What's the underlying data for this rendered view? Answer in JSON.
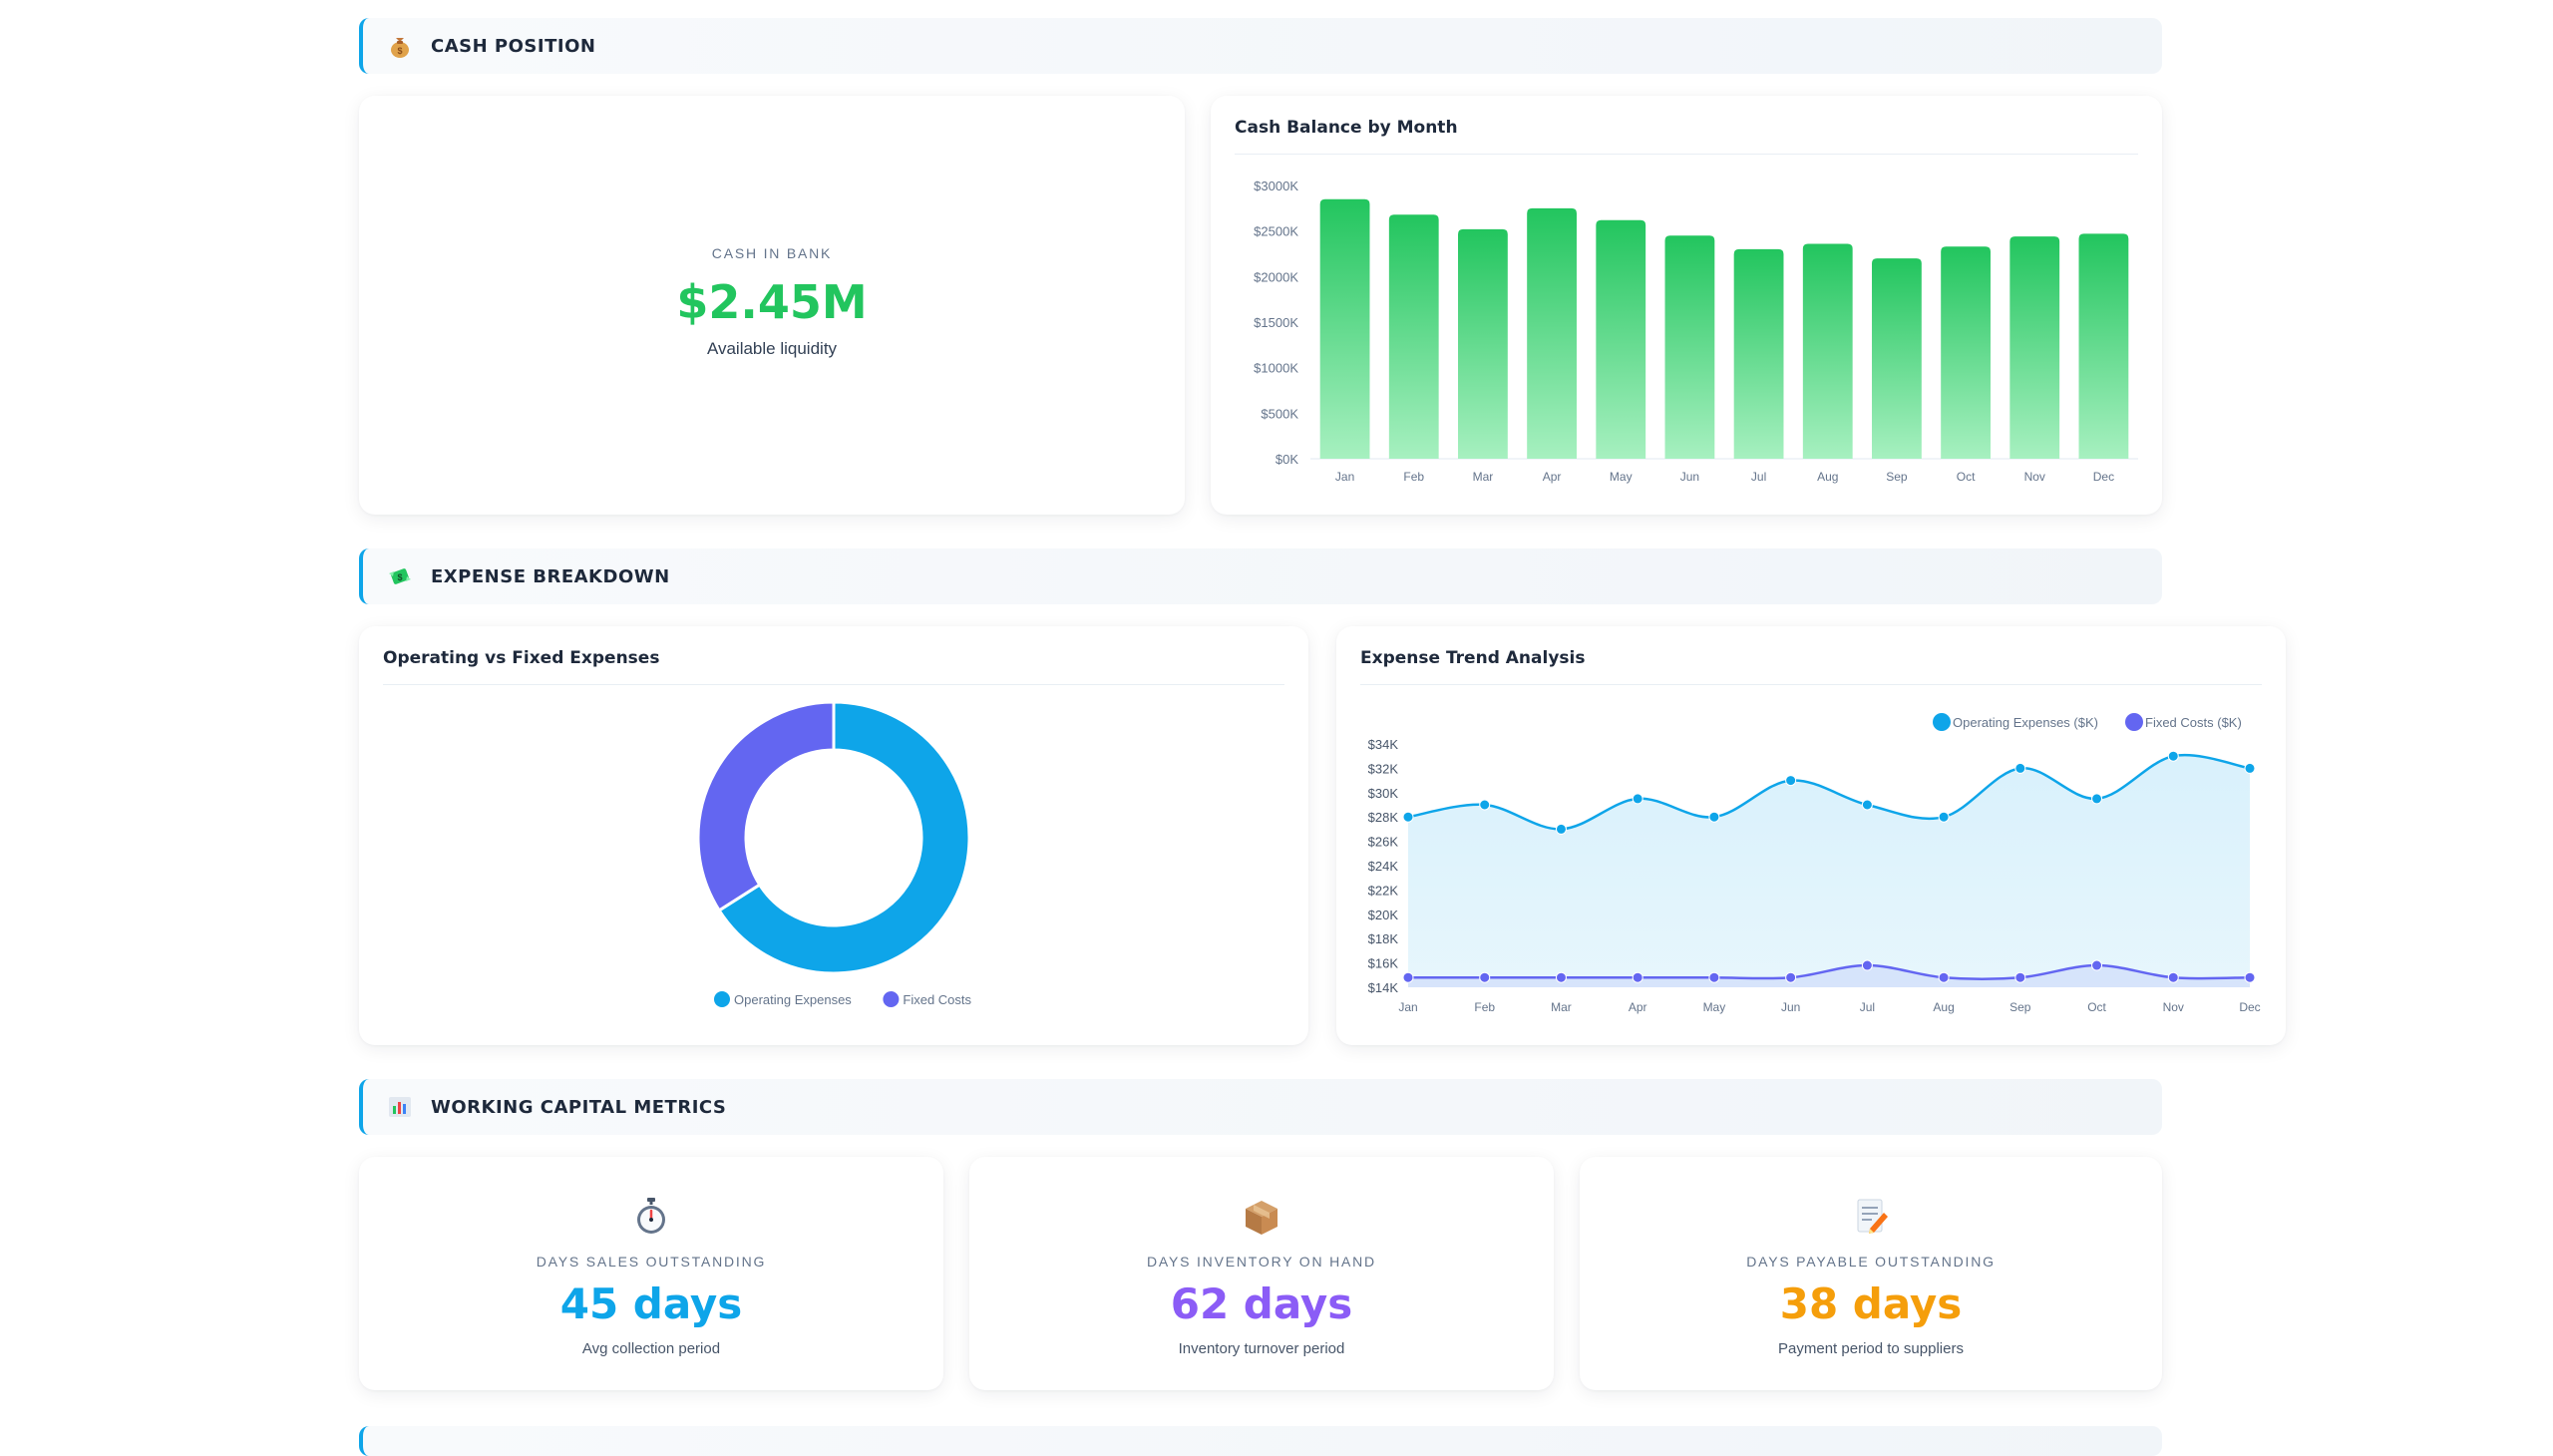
{
  "sections": {
    "cash": {
      "title": "CASH POSITION",
      "icon": "money-bag-icon"
    },
    "expense": {
      "title": "EXPENSE BREAKDOWN",
      "icon": "money-with-wings-icon"
    },
    "working_capital": {
      "title": "WORKING CAPITAL METRICS",
      "icon": "bar-chart-icon"
    }
  },
  "cash_card": {
    "label": "CASH IN BANK",
    "value": "$2.45M",
    "subtitle": "Available liquidity",
    "value_color": "#22c55e"
  },
  "cash_balance_chart": {
    "title": "Cash Balance by Month"
  },
  "donut_chart": {
    "title": "Operating vs Fixed Expenses"
  },
  "trend_chart": {
    "title": "Expense Trend Analysis"
  },
  "metrics": [
    {
      "icon": "stopwatch-icon",
      "label": "DAYS SALES OUTSTANDING",
      "value": "45 days",
      "subtitle": "Avg collection period",
      "color": "#0ea5e9"
    },
    {
      "icon": "package-icon",
      "label": "DAYS INVENTORY ON HAND",
      "value": "62 days",
      "subtitle": "Inventory turnover period",
      "color": "#8b5cf6"
    },
    {
      "icon": "memo-icon",
      "label": "DAYS PAYABLE OUTSTANDING",
      "value": "38 days",
      "subtitle": "Payment period to suppliers",
      "color": "#f59e0b"
    }
  ],
  "chart_data": [
    {
      "type": "bar",
      "title": "Cash Balance by Month",
      "categories": [
        "Jan",
        "Feb",
        "Mar",
        "Apr",
        "May",
        "Jun",
        "Jul",
        "Aug",
        "Sep",
        "Oct",
        "Nov",
        "Dec"
      ],
      "values": [
        2850,
        2680,
        2520,
        2750,
        2620,
        2450,
        2300,
        2360,
        2200,
        2330,
        2440,
        2470
      ],
      "ylim": [
        0,
        3000
      ],
      "yticks": [
        "$0K",
        "$500K",
        "$1000K",
        "$1500K",
        "$2000K",
        "$2500K",
        "$3000K"
      ],
      "color": "#22c55e",
      "grid": false
    },
    {
      "type": "pie",
      "title": "Operating vs Fixed Expenses",
      "series": [
        {
          "name": "Operating Expenses",
          "value": 66,
          "color": "#0ea5e9"
        },
        {
          "name": "Fixed Costs",
          "value": 34,
          "color": "#6366f1"
        }
      ],
      "legend": "bottom"
    },
    {
      "type": "line",
      "title": "Expense Trend Analysis",
      "categories": [
        "Jan",
        "Feb",
        "Mar",
        "Apr",
        "May",
        "Jun",
        "Jul",
        "Aug",
        "Sep",
        "Oct",
        "Nov",
        "Dec"
      ],
      "series": [
        {
          "name": "Operating Expenses ($K)",
          "values": [
            28,
            29,
            27,
            29.5,
            28,
            31,
            29,
            28,
            32,
            29.5,
            33,
            32
          ],
          "color": "#0ea5e9"
        },
        {
          "name": "Fixed Costs ($K)",
          "values": [
            14.8,
            14.8,
            14.8,
            14.8,
            14.8,
            14.8,
            15.8,
            14.8,
            14.8,
            15.8,
            14.8,
            14.8
          ],
          "color": "#6366f1"
        }
      ],
      "ylim": [
        14,
        34
      ],
      "yticks": [
        "$14K",
        "$16K",
        "$18K",
        "$20K",
        "$22K",
        "$24K",
        "$26K",
        "$28K",
        "$30K",
        "$32K",
        "$34K"
      ],
      "legend": "top-right",
      "grid": false
    }
  ]
}
